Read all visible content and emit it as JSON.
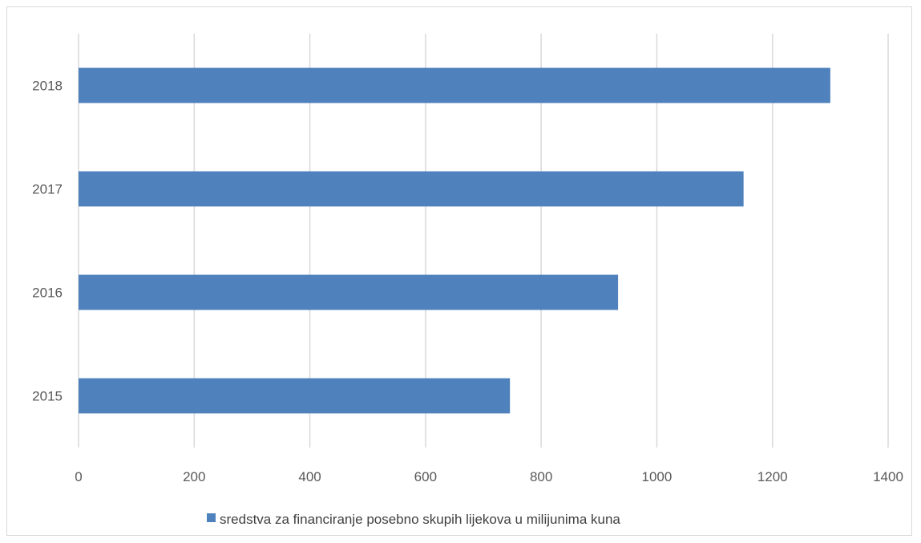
{
  "chart_data": {
    "type": "bar",
    "orientation": "horizontal",
    "categories": [
      "2015",
      "2016",
      "2017",
      "2018"
    ],
    "series": [
      {
        "name": "sredstva za financiranje posebno skupih lijekova u milijunima kuna",
        "values": [
          746,
          933,
          1150,
          1300
        ],
        "color": "#4f81bd"
      }
    ],
    "xlim": [
      0,
      1400
    ],
    "x_ticks": [
      0,
      200,
      400,
      600,
      800,
      1000,
      1200,
      1400
    ],
    "grid": true,
    "legend_position": "bottom",
    "gridline_color": "#d9d9d9",
    "text_color": "#595959"
  }
}
